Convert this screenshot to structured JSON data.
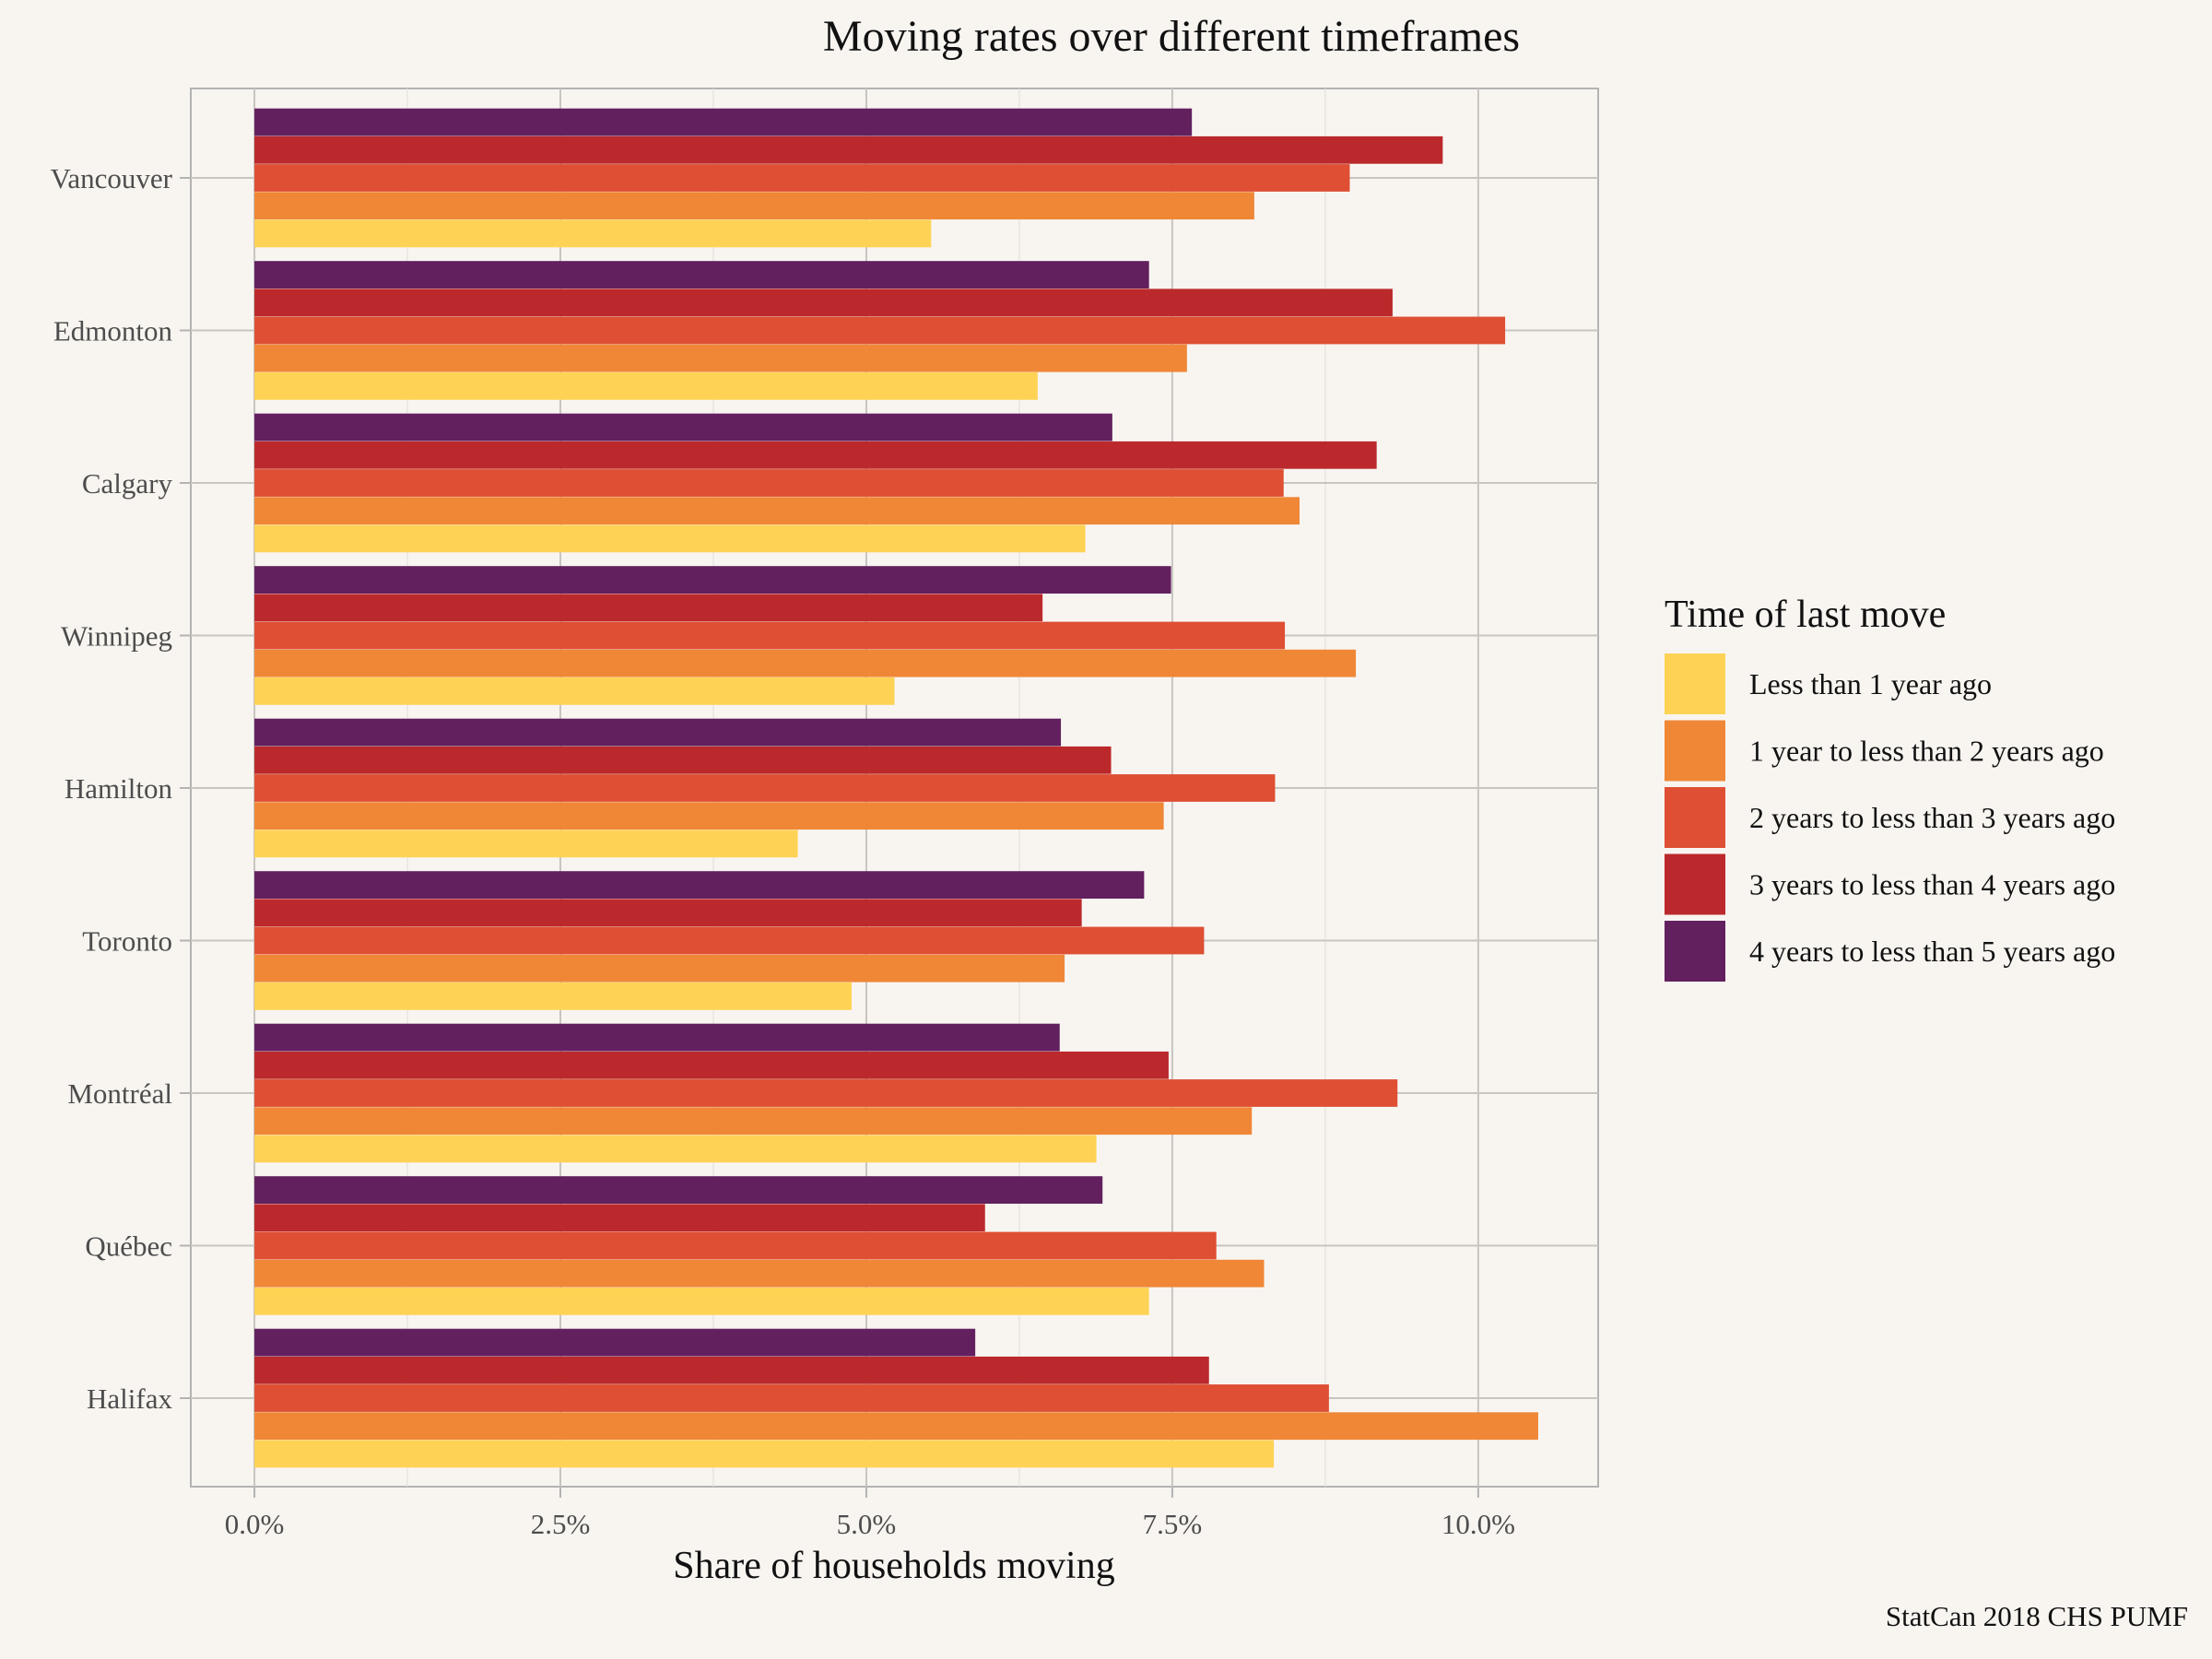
{
  "chart_data": {
    "type": "bar",
    "orientation": "horizontal",
    "title": "Moving rates over different timeframes",
    "xlabel": "Share of households moving",
    "ylabel": "",
    "xlim": [
      -0.52,
      10.98
    ],
    "xticks": [
      0,
      2.5,
      5,
      7.5,
      10
    ],
    "xtick_labels": [
      "0.0%",
      "2.5%",
      "5.0%",
      "7.5%",
      "10.0%"
    ],
    "grid": true,
    "legend_title": "Time of last move",
    "legend_position": "right",
    "caption": "StatCan 2018 CHS PUMF",
    "categories": [
      "Vancouver",
      "Edmonton",
      "Calgary",
      "Winnipeg",
      "Hamilton",
      "Toronto",
      "Montréal",
      "Québec",
      "Halifax"
    ],
    "series": [
      {
        "name": "Less than 1 year ago",
        "color": "#fed355",
        "values": [
          5.53,
          6.4,
          6.79,
          5.23,
          4.44,
          4.88,
          6.88,
          7.31,
          8.33
        ]
      },
      {
        "name": "1 year to less than 2 years ago",
        "color": "#ef8737",
        "values": [
          8.17,
          7.62,
          8.54,
          9.0,
          7.43,
          6.62,
          8.15,
          8.25,
          10.49
        ]
      },
      {
        "name": "2 years to less than 3 years ago",
        "color": "#de4f33",
        "values": [
          8.95,
          10.22,
          8.41,
          8.42,
          8.34,
          7.76,
          9.34,
          7.86,
          8.78
        ]
      },
      {
        "name": "3 years to less than 4 years ago",
        "color": "#bb292c",
        "values": [
          9.71,
          9.3,
          9.17,
          6.44,
          7.0,
          6.76,
          7.47,
          5.97,
          7.8
        ]
      },
      {
        "name": "4 years to less than 5 years ago",
        "color": "#62205f",
        "values": [
          7.66,
          7.31,
          7.01,
          7.49,
          6.59,
          7.27,
          6.58,
          6.93,
          5.89
        ]
      }
    ]
  }
}
